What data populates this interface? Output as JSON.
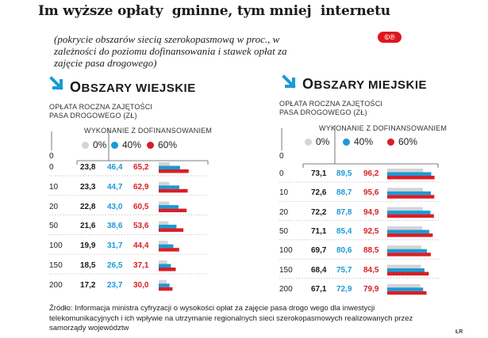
{
  "title": "Im wyższe opłaty  gminne, tym mniej  internetu",
  "subtitle": "(pokrycie obszarów siecią szerokopasmową w proc., w zależności do poziomu dofinansowania i stawek opłat za zajęcie pasa drogowego)",
  "badge": "©℗",
  "axis_label": "OPŁATA ROCZNA ZAJĘTOŚCI PASA DROGOWEGO (ZŁ)",
  "legend_label": "WYKONANIE Z DOFINANSOWANIEM",
  "legend": [
    "0%",
    "40%",
    "60%"
  ],
  "colors": {
    "s0": "#d4d4d4",
    "s40": "#1a9ad6",
    "s60": "#d91e26",
    "arrow": "#1a9ad6"
  },
  "source": "Źródło: Informacja ministra cyfryzacji  o wysokości opłat za zajęcie pasa drogo wego dla inwestycji telekomunikacyjnych i ich wpływie na utrzymanie regionalnych  sieci szerokopasmowych realizowanych przez samorządy województw",
  "credit": "ŁR",
  "chart_data": [
    {
      "type": "bar",
      "title": "OBSZARY WIEJSKIE",
      "title_first": "O",
      "title_rest": "BSZARY WIEJSKIE",
      "axis_start": "0",
      "categories": [
        "0",
        "10",
        "20",
        "50",
        "100",
        "150",
        "200"
      ],
      "series": [
        {
          "name": "0%",
          "values": [
            23.8,
            23.3,
            22.8,
            21.6,
            19.9,
            18.5,
            17.2
          ],
          "labels": [
            "23,8",
            "23,3",
            "22,8",
            "21,6",
            "19,9",
            "18,5",
            "17,2"
          ]
        },
        {
          "name": "40%",
          "values": [
            46.4,
            44.7,
            43.0,
            38.6,
            31.7,
            26.5,
            23.7
          ],
          "labels": [
            "46,4",
            "44,7",
            "43,0",
            "38,6",
            "31,7",
            "26,5",
            "23,7"
          ]
        },
        {
          "name": "60%",
          "values": [
            65.2,
            62.9,
            60.5,
            53.6,
            44.4,
            37.1,
            30.0
          ],
          "labels": [
            "65,2",
            "62,9",
            "60,5",
            "53,6",
            "44,4",
            "37,1",
            "30,0"
          ]
        }
      ],
      "ylim": [
        0,
        100
      ]
    },
    {
      "type": "bar",
      "title": "OBSZARY MIEJSKIE",
      "title_first": "O",
      "title_rest": "BSZARY MIEJSKIE",
      "axis_start": "0",
      "categories": [
        "0",
        "10",
        "20",
        "50",
        "100",
        "150",
        "200"
      ],
      "series": [
        {
          "name": "0%",
          "values": [
            73.1,
            72.6,
            72.2,
            71.1,
            69.7,
            68.4,
            67.1
          ],
          "labels": [
            "73,1",
            "72,6",
            "72,2",
            "71,1",
            "69,7",
            "68,4",
            "67,1"
          ]
        },
        {
          "name": "40%",
          "values": [
            89.5,
            88.7,
            87.8,
            85.4,
            80.6,
            75.7,
            72.9
          ],
          "labels": [
            "89,5",
            "88,7",
            "87,8",
            "85,4",
            "80,6",
            "75,7",
            "72,9"
          ]
        },
        {
          "name": "60%",
          "values": [
            96.2,
            95.6,
            94.9,
            92.5,
            88.5,
            84.5,
            79.9
          ],
          "labels": [
            "96,2",
            "95,6",
            "94,9",
            "92,5",
            "88,5",
            "84,5",
            "79,9"
          ]
        }
      ],
      "ylim": [
        0,
        100
      ]
    }
  ]
}
